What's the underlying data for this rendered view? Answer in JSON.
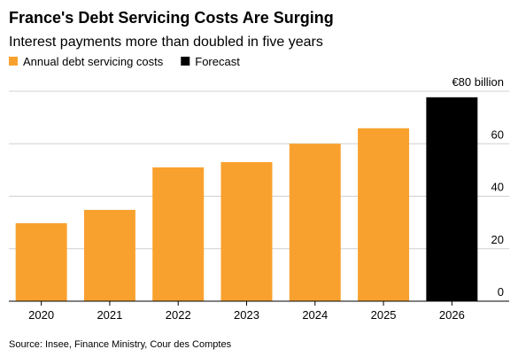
{
  "chart_data": {
    "type": "bar",
    "title": "France's Debt Servicing Costs Are Surging",
    "subtitle": "Interest payments more than doubled in five years",
    "categories": [
      "2020",
      "2021",
      "2022",
      "2023",
      "2024",
      "2025",
      "2026"
    ],
    "series": [
      {
        "name": "Annual debt servicing costs",
        "color": "#f9a12e",
        "values": [
          29.7,
          34.8,
          51,
          53,
          60,
          65.9,
          null
        ]
      },
      {
        "name": "Forecast",
        "color": "#000000",
        "values": [
          null,
          null,
          null,
          null,
          null,
          null,
          77.7
        ]
      }
    ],
    "ylim": [
      0,
      80
    ],
    "yticks": [
      0,
      20,
      40,
      60,
      {
        "value": 80,
        "label": "€80 billion"
      }
    ],
    "grid": true,
    "source": "Source: Insee, Finance Ministry, Cour des Comptes"
  }
}
